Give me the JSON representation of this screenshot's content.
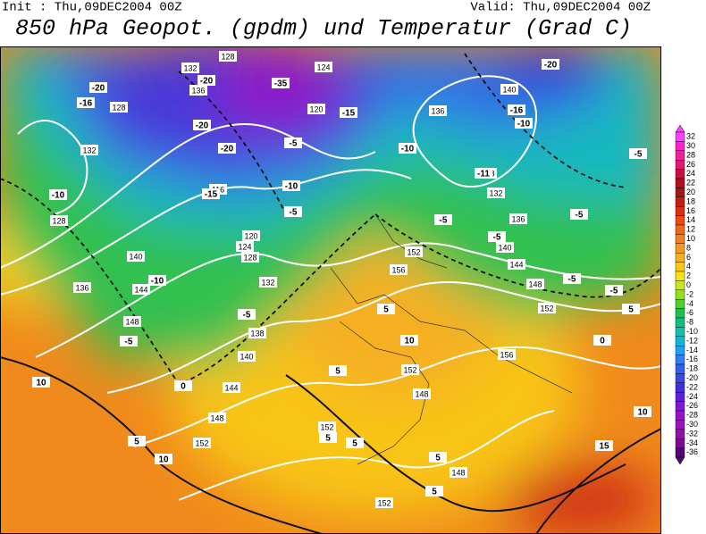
{
  "header": {
    "init": "Init : Thu,09DEC2004 00Z",
    "valid": "Valid: Thu,09DEC2004 00Z",
    "title": "850 hPa Geopot. (gpdm) und Temperatur (Grad C)"
  },
  "colorbar": {
    "levels": [
      32,
      30,
      28,
      26,
      24,
      22,
      20,
      18,
      16,
      14,
      12,
      10,
      8,
      6,
      4,
      2,
      0,
      -2,
      -4,
      -6,
      -8,
      -10,
      -12,
      -14,
      -16,
      -18,
      -20,
      -22,
      -24,
      -26,
      -28,
      -30,
      -32,
      -34,
      -36
    ],
    "colors": [
      "#ff40ff",
      "#ff20d0",
      "#f0209a",
      "#e01870",
      "#c81040",
      "#b01020",
      "#a01818",
      "#c02010",
      "#d83010",
      "#e84c10",
      "#f06818",
      "#f08020",
      "#f09a20",
      "#f5b020",
      "#f8c818",
      "#fce010",
      "#c8e818",
      "#90e020",
      "#50d030",
      "#20c050",
      "#10c080",
      "#10c0b0",
      "#10b8d8",
      "#20a0f0",
      "#3080f0",
      "#3060e8",
      "#3848e0",
      "#4030d8",
      "#6020d8",
      "#8018d8",
      "#9810d0",
      "#a010c0",
      "#9010a8",
      "#780c90",
      "#500870"
    ]
  },
  "contours": {
    "height": [
      128,
      132,
      136,
      128,
      132,
      128,
      136,
      140,
      144,
      148,
      120,
      124,
      116,
      120,
      124,
      128,
      132,
      138,
      140,
      144,
      148,
      152,
      156,
      152,
      152,
      148,
      152,
      148,
      152,
      136,
      140,
      128,
      132,
      136,
      140,
      144,
      148,
      152,
      156
    ],
    "temperature": [
      -35,
      -20,
      -16,
      -20,
      -20,
      -20,
      -15,
      -10,
      -10,
      -5,
      -5,
      0,
      10,
      5,
      10,
      -5,
      -10,
      -5,
      -15,
      -10,
      -5,
      -5,
      -10,
      -16,
      -11,
      -20,
      -5,
      -5,
      -5,
      -5,
      5,
      10,
      5,
      5,
      5,
      5,
      5,
      10,
      15,
      0,
      5
    ]
  }
}
